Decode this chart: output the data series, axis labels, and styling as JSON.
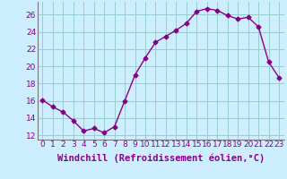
{
  "x": [
    0,
    1,
    2,
    3,
    4,
    5,
    6,
    7,
    8,
    9,
    10,
    11,
    12,
    13,
    14,
    15,
    16,
    17,
    18,
    19,
    20,
    21,
    22,
    23
  ],
  "y": [
    16.1,
    15.3,
    14.7,
    13.7,
    12.5,
    12.8,
    12.3,
    13.0,
    16.0,
    19.0,
    21.0,
    22.8,
    23.5,
    24.2,
    25.0,
    26.4,
    26.7,
    26.5,
    25.9,
    25.5,
    25.7,
    24.6,
    20.5,
    18.7
  ],
  "line_color": "#880088",
  "marker": "D",
  "marker_size": 2.5,
  "bg_color": "#cceeff",
  "grid_color": "#99cccc",
  "xlabel": "Windchill (Refroidissement éolien,°C)",
  "xlabel_fontsize": 7.5,
  "tick_fontsize": 6.5,
  "ylim": [
    11.5,
    27.5
  ],
  "yticks": [
    12,
    14,
    16,
    18,
    20,
    22,
    24,
    26
  ],
  "xlim": [
    -0.5,
    23.5
  ]
}
